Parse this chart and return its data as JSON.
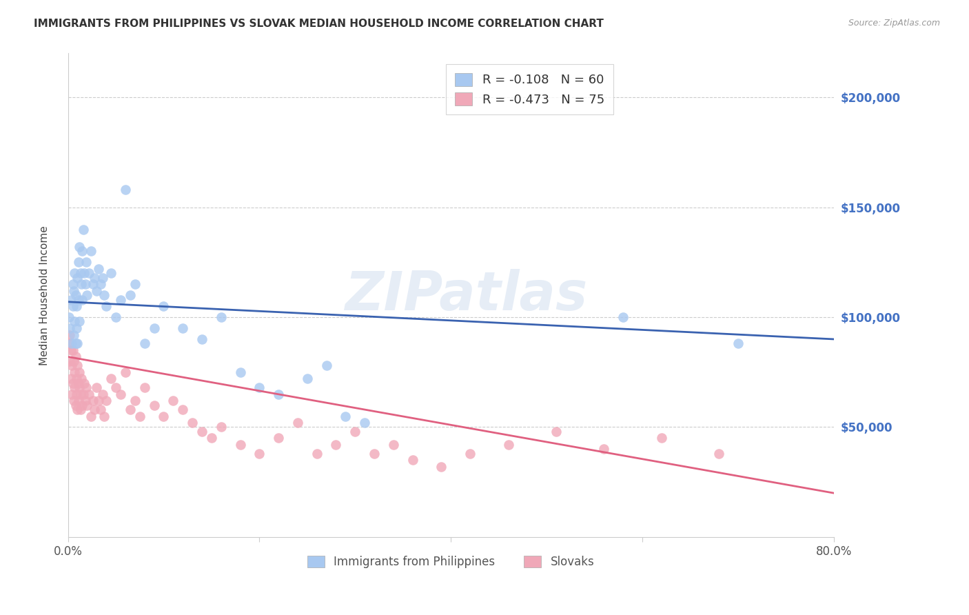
{
  "title": "IMMIGRANTS FROM PHILIPPINES VS SLOVAK MEDIAN HOUSEHOLD INCOME CORRELATION CHART",
  "source": "Source: ZipAtlas.com",
  "ylabel": "Median Household Income",
  "y_tick_values": [
    50000,
    100000,
    150000,
    200000
  ],
  "ylim": [
    0,
    220000
  ],
  "xlim": [
    0.0,
    0.8
  ],
  "legend_labels_top": [
    "R = -0.108   N = 60",
    "R = -0.473   N = 75"
  ],
  "legend_labels_bottom": [
    "Immigrants from Philippines",
    "Slovaks"
  ],
  "blue_scatter_color": "#a8c8f0",
  "pink_scatter_color": "#f0a8b8",
  "blue_line_color": "#3a62b0",
  "pink_line_color": "#e06080",
  "scatter_size": 110,
  "scatter_alpha": 0.8,
  "blue_line_x": [
    0.0,
    0.8
  ],
  "blue_line_y": [
    107000,
    90000
  ],
  "pink_line_x": [
    0.0,
    0.8
  ],
  "pink_line_y": [
    82000,
    20000
  ],
  "background_color": "#ffffff",
  "grid_color": "#cccccc",
  "title_color": "#333333",
  "source_color": "#999999",
  "blue_points_x": [
    0.001,
    0.002,
    0.003,
    0.004,
    0.005,
    0.005,
    0.006,
    0.006,
    0.007,
    0.007,
    0.008,
    0.008,
    0.009,
    0.009,
    0.01,
    0.01,
    0.011,
    0.011,
    0.012,
    0.012,
    0.013,
    0.014,
    0.015,
    0.015,
    0.016,
    0.017,
    0.018,
    0.019,
    0.02,
    0.022,
    0.024,
    0.026,
    0.028,
    0.03,
    0.032,
    0.034,
    0.036,
    0.038,
    0.04,
    0.045,
    0.05,
    0.055,
    0.06,
    0.065,
    0.07,
    0.08,
    0.09,
    0.1,
    0.12,
    0.14,
    0.16,
    0.18,
    0.2,
    0.22,
    0.25,
    0.27,
    0.29,
    0.31,
    0.58,
    0.7
  ],
  "blue_points_y": [
    100000,
    95000,
    108000,
    88000,
    105000,
    115000,
    92000,
    112000,
    98000,
    120000,
    88000,
    110000,
    105000,
    95000,
    118000,
    88000,
    108000,
    125000,
    98000,
    132000,
    120000,
    115000,
    108000,
    130000,
    140000,
    120000,
    115000,
    125000,
    110000,
    120000,
    130000,
    115000,
    118000,
    112000,
    122000,
    115000,
    118000,
    110000,
    105000,
    120000,
    100000,
    108000,
    158000,
    110000,
    115000,
    88000,
    95000,
    105000,
    95000,
    90000,
    100000,
    75000,
    68000,
    65000,
    72000,
    78000,
    55000,
    52000,
    100000,
    88000
  ],
  "pink_points_x": [
    0.001,
    0.002,
    0.002,
    0.003,
    0.003,
    0.004,
    0.004,
    0.005,
    0.005,
    0.006,
    0.006,
    0.007,
    0.007,
    0.008,
    0.008,
    0.009,
    0.009,
    0.01,
    0.01,
    0.011,
    0.011,
    0.012,
    0.012,
    0.013,
    0.013,
    0.014,
    0.015,
    0.016,
    0.017,
    0.018,
    0.019,
    0.02,
    0.022,
    0.024,
    0.026,
    0.028,
    0.03,
    0.032,
    0.034,
    0.036,
    0.038,
    0.04,
    0.045,
    0.05,
    0.055,
    0.06,
    0.065,
    0.07,
    0.075,
    0.08,
    0.09,
    0.1,
    0.11,
    0.12,
    0.13,
    0.14,
    0.15,
    0.16,
    0.18,
    0.2,
    0.22,
    0.24,
    0.26,
    0.28,
    0.3,
    0.32,
    0.34,
    0.36,
    0.39,
    0.42,
    0.46,
    0.51,
    0.56,
    0.62,
    0.68
  ],
  "pink_points_y": [
    88000,
    80000,
    92000,
    72000,
    85000,
    78000,
    65000,
    85000,
    70000,
    80000,
    62000,
    75000,
    68000,
    82000,
    60000,
    72000,
    65000,
    78000,
    58000,
    70000,
    62000,
    68000,
    75000,
    58000,
    65000,
    72000,
    60000,
    65000,
    70000,
    62000,
    68000,
    60000,
    65000,
    55000,
    62000,
    58000,
    68000,
    62000,
    58000,
    65000,
    55000,
    62000,
    72000,
    68000,
    65000,
    75000,
    58000,
    62000,
    55000,
    68000,
    60000,
    55000,
    62000,
    58000,
    52000,
    48000,
    45000,
    50000,
    42000,
    38000,
    45000,
    52000,
    38000,
    42000,
    48000,
    38000,
    42000,
    35000,
    32000,
    38000,
    42000,
    48000,
    40000,
    45000,
    38000
  ]
}
